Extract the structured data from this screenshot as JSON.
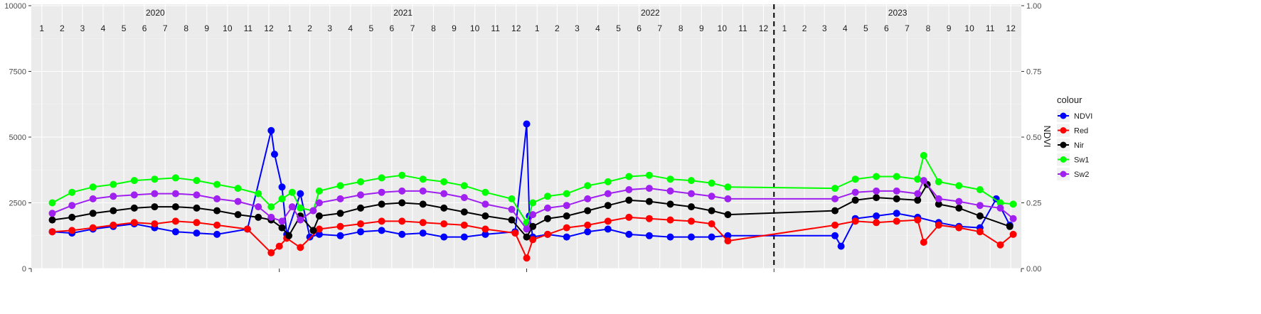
{
  "chart_data": {
    "type": "line",
    "title": "",
    "xlabel": "",
    "ylabel_left": "",
    "ylabel_right": "NDVI",
    "ylim_left": [
      0,
      10000
    ],
    "ylim_right": [
      0.0,
      1.0
    ],
    "yticks_left": [
      "0",
      "2500",
      "5000",
      "7500",
      "10000"
    ],
    "yticks_right": [
      "0.00",
      "0.25",
      "0.50",
      "0.75",
      "1.00"
    ],
    "years": [
      "2020",
      "2021",
      "2022",
      "2023"
    ],
    "months": [
      "1",
      "2",
      "3",
      "4",
      "5",
      "6",
      "7",
      "8",
      "9",
      "10",
      "11",
      "12"
    ],
    "xlim": [
      "2020-01-01",
      "2024-01-01"
    ],
    "grid": true,
    "vline": "2023-01-01",
    "legend": {
      "title": "colour",
      "position": "right"
    },
    "series": [
      {
        "name": "NDVI",
        "color": "#0000ff",
        "axis": "right",
        "x": [
          "2020-02-01",
          "2020-03-01",
          "2020-04-01",
          "2020-05-01",
          "2020-06-01",
          "2020-07-01",
          "2020-08-01",
          "2020-09-01",
          "2020-10-01",
          "2020-11-15",
          "2020-12-20",
          "2020-12-25",
          "2021-01-05",
          "2021-01-12",
          "2021-02-01",
          "2021-02-15",
          "2021-03-01",
          "2021-04-01",
          "2021-05-01",
          "2021-06-01",
          "2021-07-01",
          "2021-08-01",
          "2021-09-01",
          "2021-10-01",
          "2021-11-01",
          "2021-12-15",
          "2022-01-01",
          "2022-01-05",
          "2022-01-10",
          "2022-02-01",
          "2022-03-01",
          "2022-04-01",
          "2022-05-01",
          "2022-06-01",
          "2022-07-01",
          "2022-08-01",
          "2022-09-01",
          "2022-10-01",
          "2022-10-25",
          "2023-04-01",
          "2023-04-10",
          "2023-05-01",
          "2023-06-01",
          "2023-07-01",
          "2023-08-01",
          "2023-09-01",
          "2023-10-01",
          "2023-11-01",
          "2023-11-25",
          "2023-12-15"
        ],
        "y": [
          0.14,
          0.135,
          0.15,
          0.16,
          0.17,
          0.155,
          0.14,
          0.135,
          0.13,
          0.15,
          0.525,
          0.435,
          0.31,
          0.13,
          0.285,
          0.12,
          0.13,
          0.125,
          0.14,
          0.145,
          0.13,
          0.135,
          0.12,
          0.12,
          0.13,
          0.14,
          0.55,
          0.2,
          0.12,
          0.13,
          0.12,
          0.14,
          0.15,
          0.13,
          0.125,
          0.12,
          0.12,
          0.12,
          0.125,
          0.125,
          0.085,
          0.19,
          0.2,
          0.21,
          0.195,
          0.175,
          0.16,
          0.155,
          0.265,
          0.165
        ]
      },
      {
        "name": "Red",
        "color": "#ff0000",
        "axis": "left",
        "x": [
          "2020-02-01",
          "2020-03-01",
          "2020-04-01",
          "2020-05-01",
          "2020-06-01",
          "2020-07-01",
          "2020-08-01",
          "2020-09-01",
          "2020-10-01",
          "2020-11-15",
          "2020-12-20",
          "2021-01-01",
          "2021-01-12",
          "2021-02-01",
          "2021-03-01",
          "2021-04-01",
          "2021-05-01",
          "2021-06-01",
          "2021-07-01",
          "2021-08-01",
          "2021-09-01",
          "2021-10-01",
          "2021-11-01",
          "2021-12-15",
          "2022-01-01",
          "2022-01-10",
          "2022-02-01",
          "2022-03-01",
          "2022-04-01",
          "2022-05-01",
          "2022-06-01",
          "2022-07-01",
          "2022-08-01",
          "2022-09-01",
          "2022-10-01",
          "2022-10-25",
          "2023-04-01",
          "2023-05-01",
          "2023-06-01",
          "2023-07-01",
          "2023-08-01",
          "2023-08-10",
          "2023-09-01",
          "2023-10-01",
          "2023-11-01",
          "2023-12-01",
          "2023-12-20"
        ],
        "y": [
          1400,
          1450,
          1550,
          1650,
          1750,
          1700,
          1800,
          1750,
          1650,
          1500,
          600,
          850,
          1150,
          800,
          1500,
          1600,
          1700,
          1800,
          1800,
          1750,
          1700,
          1650,
          1500,
          1350,
          400,
          1100,
          1300,
          1550,
          1650,
          1800,
          1950,
          1900,
          1850,
          1800,
          1700,
          1050,
          1650,
          1800,
          1750,
          1800,
          1850,
          1000,
          1650,
          1550,
          1400,
          900,
          1300
        ]
      },
      {
        "name": "Nir",
        "color": "#000000",
        "axis": "left",
        "x": [
          "2020-02-01",
          "2020-03-01",
          "2020-04-01",
          "2020-05-01",
          "2020-06-01",
          "2020-07-01",
          "2020-08-01",
          "2020-09-01",
          "2020-10-01",
          "2020-11-01",
          "2020-12-01",
          "2020-12-20",
          "2021-01-05",
          "2021-01-15",
          "2021-02-01",
          "2021-02-20",
          "2021-03-01",
          "2021-04-01",
          "2021-05-01",
          "2021-06-01",
          "2021-07-01",
          "2021-08-01",
          "2021-09-01",
          "2021-10-01",
          "2021-11-01",
          "2021-12-10",
          "2022-01-01",
          "2022-01-10",
          "2022-02-01",
          "2022-03-01",
          "2022-04-01",
          "2022-05-01",
          "2022-06-01",
          "2022-07-01",
          "2022-08-01",
          "2022-09-01",
          "2022-10-01",
          "2022-10-25",
          "2023-04-01",
          "2023-05-01",
          "2023-06-01",
          "2023-07-01",
          "2023-08-01",
          "2023-08-15",
          "2023-09-01",
          "2023-10-01",
          "2023-11-01",
          "2023-12-15"
        ],
        "y": [
          1850,
          1950,
          2100,
          2200,
          2300,
          2350,
          2350,
          2300,
          2200,
          2050,
          1950,
          1850,
          1550,
          1250,
          2000,
          1450,
          2000,
          2100,
          2300,
          2450,
          2500,
          2450,
          2300,
          2150,
          2000,
          1850,
          1200,
          1600,
          1900,
          2000,
          2200,
          2400,
          2600,
          2550,
          2450,
          2350,
          2200,
          2050,
          2200,
          2600,
          2700,
          2650,
          2600,
          3200,
          2450,
          2300,
          2000,
          1600
        ]
      },
      {
        "name": "Sw1",
        "color": "#00ff00",
        "axis": "left",
        "x": [
          "2020-02-01",
          "2020-03-01",
          "2020-04-01",
          "2020-05-01",
          "2020-06-01",
          "2020-07-01",
          "2020-08-01",
          "2020-09-01",
          "2020-10-01",
          "2020-11-01",
          "2020-12-01",
          "2020-12-20",
          "2021-01-05",
          "2021-01-20",
          "2021-02-01",
          "2021-02-20",
          "2021-03-01",
          "2021-04-01",
          "2021-05-01",
          "2021-06-01",
          "2021-07-01",
          "2021-08-01",
          "2021-09-01",
          "2021-10-01",
          "2021-11-01",
          "2021-12-10",
          "2022-01-01",
          "2022-01-10",
          "2022-02-01",
          "2022-03-01",
          "2022-04-01",
          "2022-05-01",
          "2022-06-01",
          "2022-07-01",
          "2022-08-01",
          "2022-09-01",
          "2022-10-01",
          "2022-10-25",
          "2023-04-01",
          "2023-05-01",
          "2023-06-01",
          "2023-07-01",
          "2023-08-01",
          "2023-08-10",
          "2023-09-01",
          "2023-10-01",
          "2023-11-01",
          "2023-12-01",
          "2023-12-20"
        ],
        "y": [
          2500,
          2900,
          3100,
          3200,
          3350,
          3400,
          3450,
          3350,
          3200,
          3050,
          2850,
          2350,
          2650,
          2900,
          2300,
          2200,
          2950,
          3150,
          3300,
          3450,
          3550,
          3400,
          3300,
          3150,
          2900,
          2650,
          1750,
          2500,
          2750,
          2850,
          3150,
          3300,
          3500,
          3550,
          3400,
          3350,
          3250,
          3100,
          3050,
          3400,
          3500,
          3500,
          3400,
          4300,
          3300,
          3150,
          3000,
          2500,
          2450
        ]
      },
      {
        "name": "Sw2",
        "color": "#a020f0",
        "axis": "left",
        "x": [
          "2020-02-01",
          "2020-03-01",
          "2020-04-01",
          "2020-05-01",
          "2020-06-01",
          "2020-07-01",
          "2020-08-01",
          "2020-09-01",
          "2020-10-01",
          "2020-11-01",
          "2020-12-01",
          "2020-12-20",
          "2021-01-05",
          "2021-01-20",
          "2021-02-01",
          "2021-02-20",
          "2021-03-01",
          "2021-04-01",
          "2021-05-01",
          "2021-06-01",
          "2021-07-01",
          "2021-08-01",
          "2021-09-01",
          "2021-10-01",
          "2021-11-01",
          "2021-12-10",
          "2022-01-01",
          "2022-01-10",
          "2022-02-01",
          "2022-03-01",
          "2022-04-01",
          "2022-05-01",
          "2022-06-01",
          "2022-07-01",
          "2022-08-01",
          "2022-09-01",
          "2022-10-01",
          "2022-10-25",
          "2023-04-01",
          "2023-05-01",
          "2023-06-01",
          "2023-07-01",
          "2023-08-01",
          "2023-08-10",
          "2023-09-01",
          "2023-10-01",
          "2023-11-01",
          "2023-12-01",
          "2023-12-20"
        ],
        "y": [
          2100,
          2400,
          2650,
          2750,
          2800,
          2850,
          2850,
          2800,
          2650,
          2550,
          2350,
          1950,
          1800,
          2350,
          1850,
          2200,
          2500,
          2650,
          2800,
          2900,
          2950,
          2950,
          2850,
          2700,
          2450,
          2250,
          1500,
          2050,
          2300,
          2400,
          2650,
          2850,
          3000,
          3050,
          2950,
          2850,
          2750,
          2650,
          2650,
          2900,
          2950,
          2950,
          2850,
          3350,
          2650,
          2550,
          2400,
          2300,
          1900
        ]
      }
    ]
  }
}
